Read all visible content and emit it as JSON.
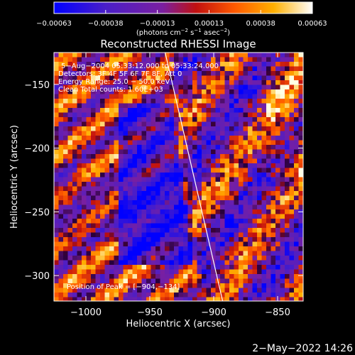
{
  "chart_data": {
    "type": "heatmap",
    "title": "Reconstructed RHESSI Image",
    "xlabel": "Heliocentric X (arcsec)",
    "ylabel": "Heliocentric Y (arcsec)",
    "xlim": [
      -1025,
      -830
    ],
    "ylim": [
      -320,
      -125
    ],
    "xticks": [
      -1000,
      -950,
      -900,
      -850
    ],
    "yticks": [
      -300,
      -250,
      -200,
      -150
    ],
    "colorbar": {
      "label_main": "(photons cm",
      "label_exp1": "−2",
      "label_mid": " s",
      "label_exp2": "−1",
      "label_end": " asec",
      "label_exp3": "−2",
      "label_close": ")",
      "ticks": [
        "−0.00063",
        "−0.00038",
        "−0.00013",
        "0.00013",
        "0.00038",
        "0.00063"
      ],
      "range": [
        -0.00063,
        0.00063
      ],
      "colors": [
        "#0000ff",
        "#5020c8",
        "#7a1fa0",
        "#c01010",
        "#ff5a00",
        "#ffb000",
        "#ffffff"
      ]
    },
    "info_lines": [
      "5−Aug−2004 05:33:12.000 to 05:33:24.000",
      "Detectors: 3F 4F 5F 6F 7F 8F, Att 0",
      "Energy Range: 25.0 − 50.0 keV",
      "Clean     Total counts: 1.60E+03"
    ],
    "peak_text": "Position of Peak = [−904,−134]",
    "limb_line": {
      "x1": -938,
      "y1": -125,
      "x2": -893,
      "y2": -320
    }
  },
  "timestamp": "2−May−2022 14:26"
}
